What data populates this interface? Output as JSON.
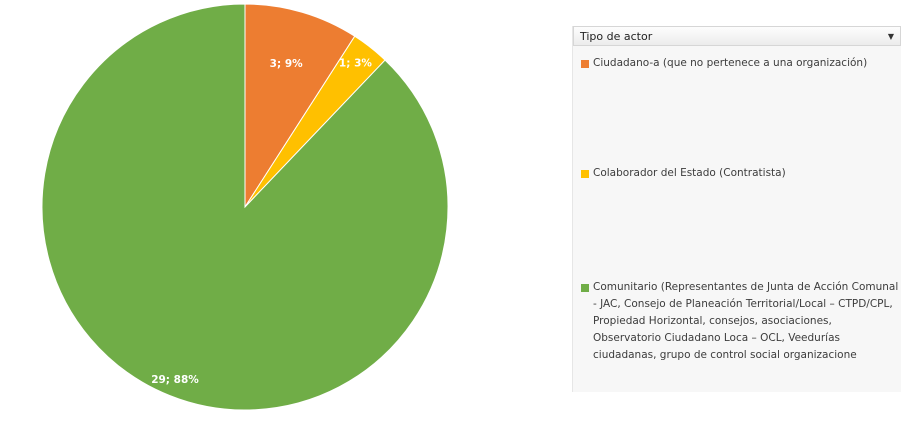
{
  "chart_data": {
    "type": "pie",
    "slices": [
      {
        "label": "Ciudadano-a (que no pertenece a una organización)",
        "value": 3,
        "percent": "9%",
        "color": "#ed7d31"
      },
      {
        "label": "Colaborador del Estado (Contratista)",
        "value": 1,
        "percent": "3%",
        "color": "#ffc000"
      },
      {
        "label": "Comunitario (Representantes de Junta de Acción Comunal - JAC, Consejo de Planeación Territorial/Local – CTPD/CPL, Propiedad Horizontal, consejos, asociaciones, Observatorio Ciudadano Loca – OCL, Veedurías ciudadanas, grupo de control social organizacione",
        "value": 29,
        "percent": "88%",
        "color": "#70ad47"
      }
    ],
    "data_labels": [
      "3; 9%",
      "1; 3%",
      "29; 88%"
    ],
    "legend_title": "Tipo de actor",
    "legend_position": "right"
  }
}
